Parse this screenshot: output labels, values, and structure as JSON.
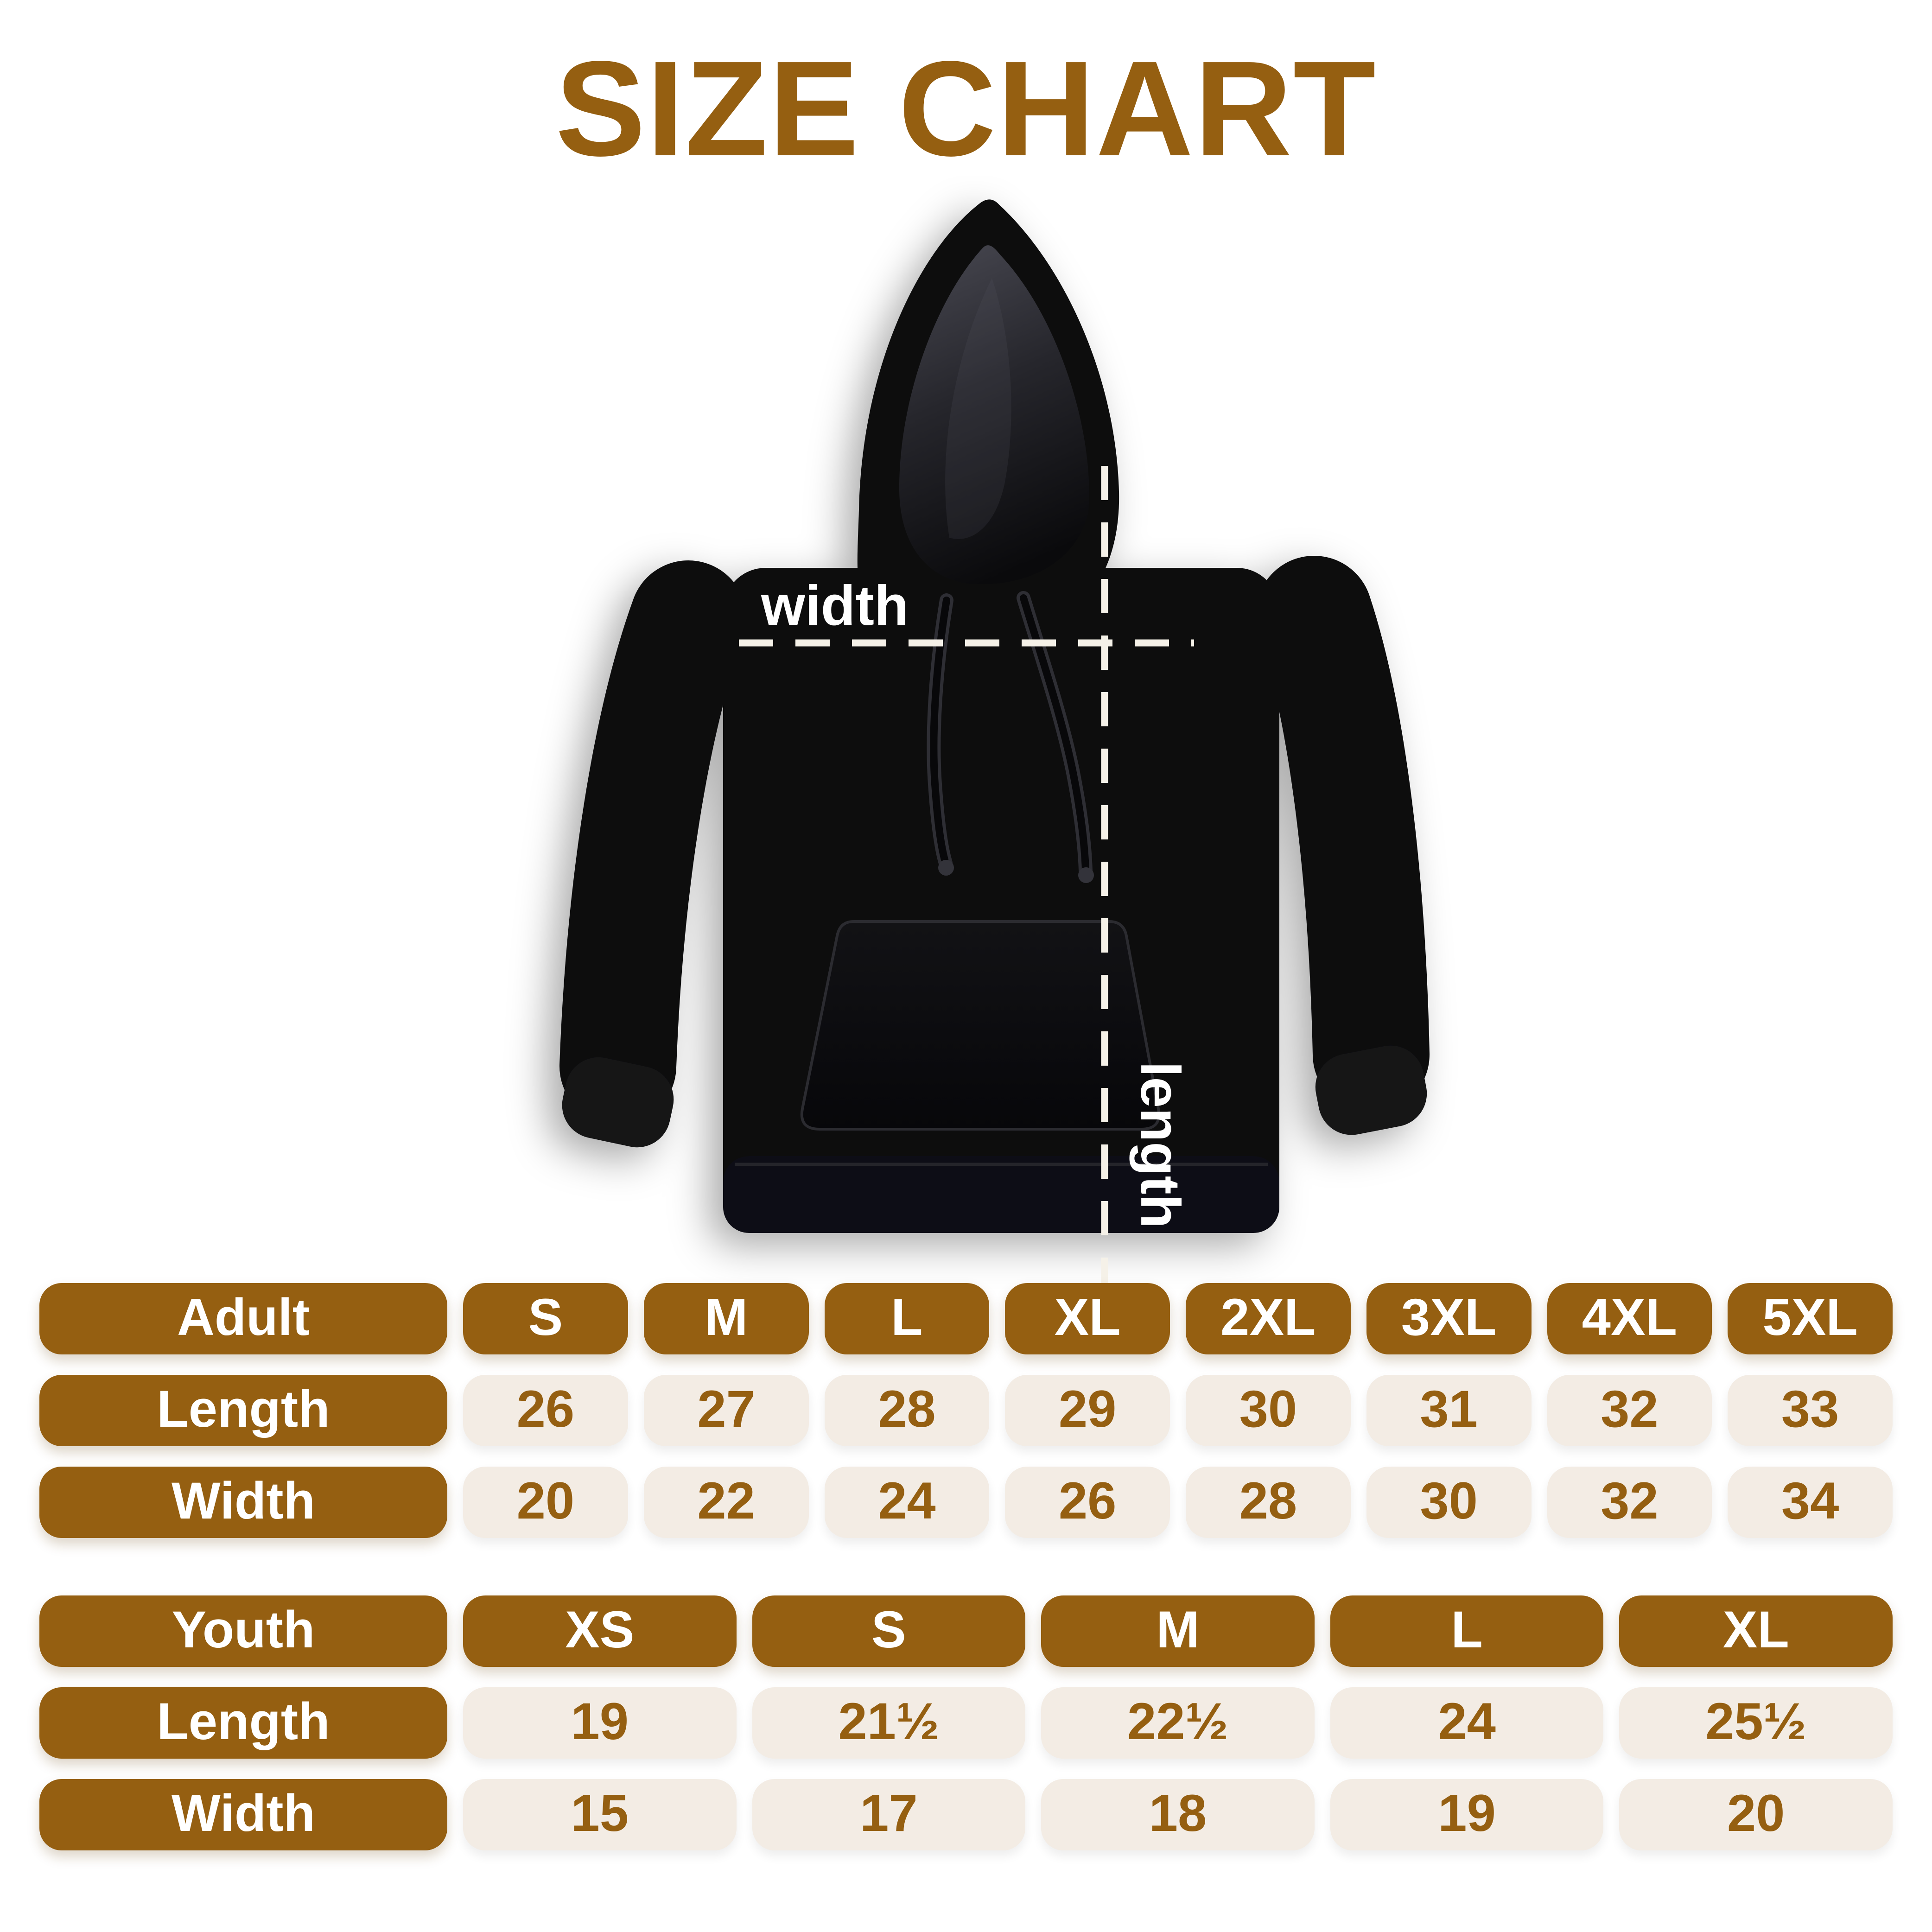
{
  "title": "SIZE CHART",
  "diagram": {
    "garment": "black pullover hoodie",
    "width_label": "width",
    "length_label": "length"
  },
  "chart_data": {
    "type": "table",
    "title": "SIZE CHART",
    "tables": [
      {
        "name": "Adult",
        "columns": [
          "S",
          "M",
          "L",
          "XL",
          "2XL",
          "3XL",
          "4XL",
          "5XL"
        ],
        "rows": [
          {
            "label": "Length",
            "values": [
              "26",
              "27",
              "28",
              "29",
              "30",
              "31",
              "32",
              "33"
            ]
          },
          {
            "label": "Width",
            "values": [
              "20",
              "22",
              "24",
              "26",
              "28",
              "30",
              "32",
              "34"
            ]
          }
        ]
      },
      {
        "name": "Youth",
        "columns": [
          "XS",
          "S",
          "M",
          "L",
          "XL"
        ],
        "rows": [
          {
            "label": "Length",
            "values": [
              "19",
              "21½",
              "22½",
              "24",
              "25½"
            ]
          },
          {
            "label": "Width",
            "values": [
              "15",
              "17",
              "18",
              "19",
              "20"
            ]
          }
        ]
      }
    ]
  },
  "colors": {
    "accent_brown": "#955F11",
    "cell_cream": "#F3ECE4",
    "hoodie_black": "#0C0C0F",
    "label_white": "#FFFFFF"
  }
}
